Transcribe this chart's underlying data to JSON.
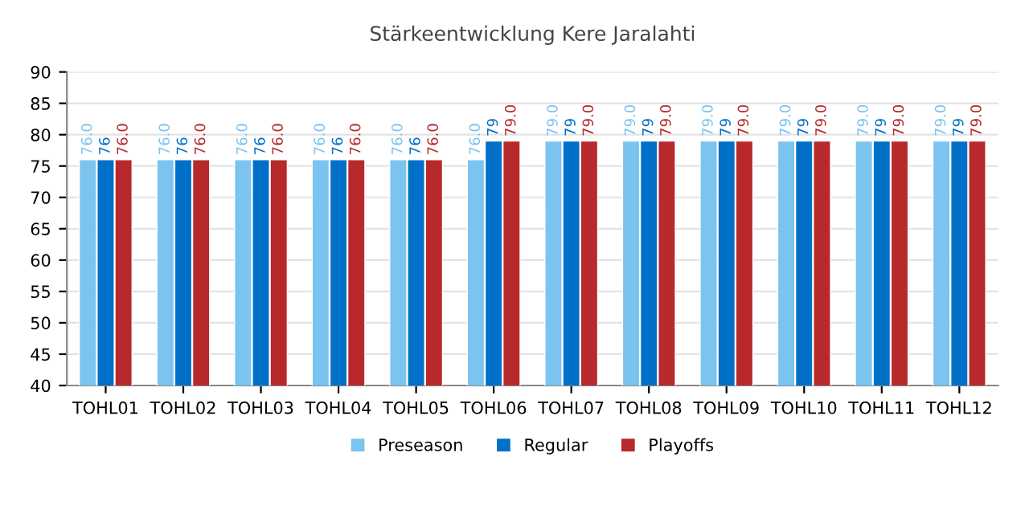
{
  "chart_data": {
    "type": "bar",
    "title": "Stärkeentwicklung Kere Jaralahti",
    "categories": [
      "TOHL01",
      "TOHL02",
      "TOHL03",
      "TOHL04",
      "TOHL05",
      "TOHL06",
      "TOHL07",
      "TOHL08",
      "TOHL09",
      "TOHL10",
      "TOHL11",
      "TOHL12"
    ],
    "series": [
      {
        "name": "Preseason",
        "color": "#7ac4ef",
        "values": [
          76,
          76,
          76,
          76,
          76,
          76,
          79,
          79,
          79,
          79,
          79,
          79
        ],
        "value_labels": [
          "76.0",
          "76.0",
          "76.0",
          "76.0",
          "76.0",
          "76.0",
          "79.0",
          "79.0",
          "79.0",
          "79.0",
          "79.0",
          "79.0"
        ]
      },
      {
        "name": "Regular",
        "color": "#0070c8",
        "values": [
          76,
          76,
          76,
          76,
          76,
          79,
          79,
          79,
          79,
          79,
          79,
          79
        ],
        "value_labels": [
          "76",
          "76",
          "76",
          "76",
          "76",
          "79",
          "79",
          "79",
          "79",
          "79",
          "79",
          "79"
        ]
      },
      {
        "name": "Playoffs",
        "color": "#b8292b",
        "values": [
          76,
          76,
          76,
          76,
          76,
          79,
          79,
          79,
          79,
          79,
          79,
          79
        ],
        "value_labels": [
          "76.0",
          "76.0",
          "76.0",
          "76.0",
          "76.0",
          "79.0",
          "79.0",
          "79.0",
          "79.0",
          "79.0",
          "79.0",
          "79.0"
        ]
      }
    ],
    "ylim": [
      40,
      90
    ],
    "yticks": [
      40,
      45,
      50,
      55,
      60,
      65,
      70,
      75,
      80,
      85,
      90
    ],
    "grid": "y",
    "legend": "bottom"
  }
}
